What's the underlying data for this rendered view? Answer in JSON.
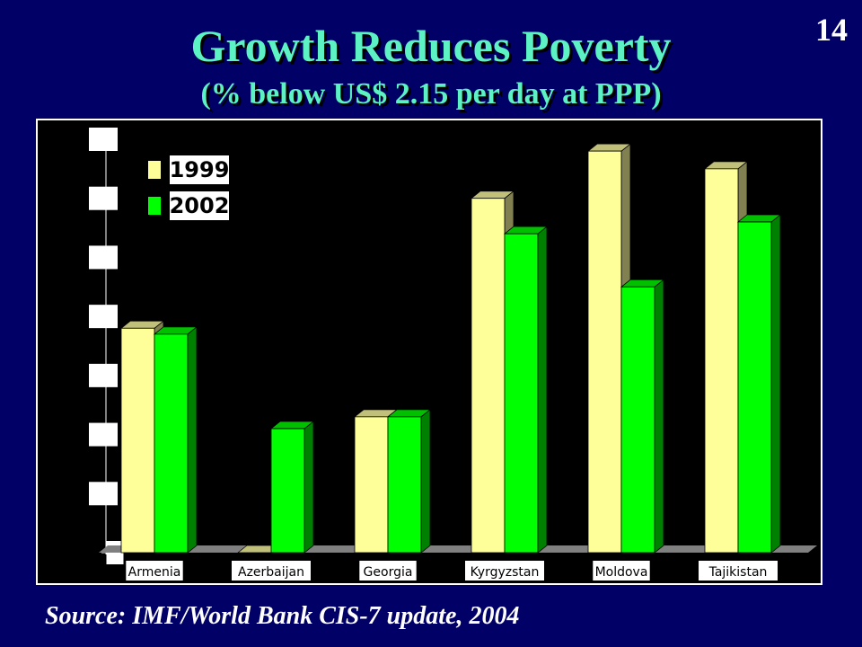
{
  "slide": {
    "number": "14",
    "title": "Growth Reduces Poverty",
    "subtitle": "(% below US$ 2.15 per day at PPP)",
    "source": "Source: IMF/World Bank CIS-7 update, 2004"
  },
  "chart_data": {
    "type": "bar",
    "title": "Growth Reduces Poverty",
    "subtitle": "(% below US$ 2.15 per day at PPP)",
    "categories": [
      "Armenia",
      "Azerbaijan",
      "Georgia",
      "Kyrgyzstan",
      "Moldova",
      "Tajikistan"
    ],
    "series": [
      {
        "name": "1999",
        "values": [
          38,
          0,
          23,
          60,
          68,
          65
        ],
        "color": "#ffff99"
      },
      {
        "name": "2002",
        "values": [
          37,
          21,
          23,
          54,
          45,
          56
        ],
        "color": "#00ff00"
      }
    ],
    "ylim": [
      0,
      70
    ],
    "yticks": [
      0,
      10,
      20,
      30,
      40,
      50,
      60,
      70
    ],
    "xlabel": "",
    "ylabel": "",
    "legend": "top-left",
    "grid": false
  }
}
